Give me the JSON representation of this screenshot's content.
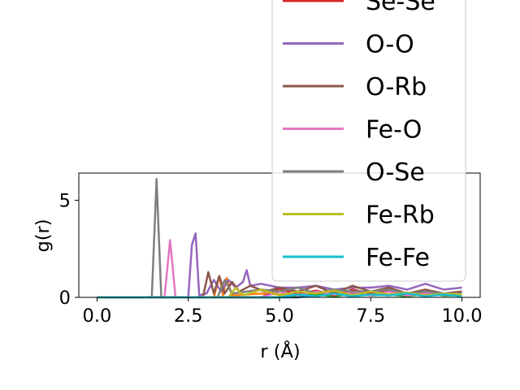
{
  "chart_data": {
    "type": "line",
    "xlabel": "r (Å)",
    "ylabel": "g(r)",
    "xlim": [
      -0.5,
      10.5
    ],
    "ylim": [
      0,
      6.4
    ],
    "xticks": [
      0.0,
      2.5,
      5.0,
      7.5,
      10.0
    ],
    "xtick_labels": [
      "0.0",
      "2.5",
      "5.0",
      "7.5",
      "10.0"
    ],
    "yticks": [
      0,
      5
    ],
    "ytick_labels": [
      "0",
      "5"
    ],
    "grid": false,
    "legend_position": "upper-right (extends above plot)",
    "series": [
      {
        "name": "Se-Se",
        "color": "#d62728",
        "x": [
          0,
          4.5,
          5.0,
          5.5,
          6.0,
          6.5,
          7.0,
          7.5,
          8.0,
          8.5,
          9.0,
          9.5,
          10
        ],
        "y": [
          0,
          0,
          0.45,
          0.15,
          0.35,
          0.1,
          0.4,
          0.2,
          0.3,
          0.1,
          0.25,
          0.15,
          0.1
        ]
      },
      {
        "name": "O-O",
        "color": "#9467bd",
        "x": [
          0,
          2.5,
          2.6,
          2.7,
          2.8,
          3.0,
          3.2,
          3.4,
          3.6,
          3.8,
          4.0,
          4.1,
          4.2,
          4.5,
          5.0,
          5.5,
          6.0,
          6.5,
          7.0,
          7.5,
          8.0,
          8.5,
          9.0,
          9.5,
          10
        ],
        "y": [
          0,
          0,
          2.7,
          3.3,
          0.1,
          0.2,
          0.9,
          0.3,
          0.9,
          0.5,
          0.8,
          1.4,
          0.6,
          0.7,
          0.5,
          0.5,
          0.6,
          0.4,
          0.5,
          0.5,
          0.6,
          0.4,
          0.7,
          0.4,
          0.5
        ]
      },
      {
        "name": "O-Rb",
        "color": "#8c564b",
        "x": [
          0,
          2.9,
          3.05,
          3.2,
          3.35,
          3.5,
          3.7,
          3.9,
          4.2,
          4.6,
          5.0,
          5.5,
          6.0,
          6.5,
          7.0,
          7.5,
          8.0,
          8.5,
          9.0,
          9.5,
          10
        ],
        "y": [
          0,
          0,
          1.3,
          0.2,
          1.1,
          0.2,
          0.8,
          0.3,
          0.6,
          0.3,
          0.5,
          0.3,
          0.6,
          0.2,
          0.6,
          0.3,
          0.5,
          0.2,
          0.4,
          0.2,
          0.3
        ]
      },
      {
        "name": "Fe-O",
        "color": "#e377c2",
        "x": [
          0,
          1.85,
          2.0,
          2.15,
          4.5,
          5.0,
          5.5,
          6.0,
          6.5,
          7.0,
          7.5,
          8.0,
          8.5,
          9.0,
          9.5,
          10
        ],
        "y": [
          0,
          0,
          2.95,
          0,
          0,
          0.3,
          0.1,
          0.3,
          0.15,
          0.25,
          0.1,
          0.3,
          0.1,
          0.2,
          0.15,
          0.1
        ]
      },
      {
        "name": "O-Se",
        "color": "#7f7f7f",
        "x": [
          0,
          1.5,
          1.63,
          1.76,
          3.3,
          3.5,
          3.7,
          4.5,
          5.0,
          5.5,
          6.0,
          6.5,
          7.0,
          7.5,
          8.0,
          8.5,
          9.0,
          9.5,
          10
        ],
        "y": [
          0,
          0,
          6.1,
          0,
          0,
          0.9,
          0.2,
          0.4,
          0.3,
          0.5,
          0.2,
          0.4,
          0.3,
          0.3,
          0.4,
          0.2,
          0.3,
          0.2,
          0.2
        ]
      },
      {
        "name": "Fe-Rb",
        "color": "#bcbd22",
        "x": [
          0,
          3.6,
          3.8,
          4.0,
          4.5,
          5.0,
          5.5,
          6.0,
          6.5,
          7.0,
          7.5,
          8.0,
          8.5,
          9.0,
          9.5,
          10
        ],
        "y": [
          0,
          0,
          0.5,
          0.1,
          0.4,
          0.1,
          0.3,
          0.2,
          0.35,
          0.1,
          0.3,
          0.15,
          0.25,
          0.1,
          0.2,
          0.15
        ]
      },
      {
        "name": "Fe-Fe",
        "color": "#17becf",
        "x": [
          0,
          5.0,
          5.5,
          6.0,
          6.5,
          7.0,
          7.5,
          8.0,
          8.5,
          9.0,
          9.5,
          10
        ],
        "y": [
          0,
          0,
          0.15,
          0.05,
          0.2,
          0.05,
          0.15,
          0.1,
          0.2,
          0.05,
          0.15,
          0.05
        ]
      }
    ],
    "hidden_series_colors": {
      "orange": "#ff7f0e",
      "blue": "#1f77b4",
      "green": "#2ca02c"
    },
    "hidden_series": [
      {
        "color": "#ff7f0e",
        "x": [
          0,
          3.2,
          3.35,
          3.45,
          3.55,
          3.7,
          4.5,
          5.0,
          5.5,
          6.0,
          6.5,
          7.0,
          7.5,
          8.0,
          8.5,
          9.0,
          9.5,
          10
        ],
        "y": [
          0,
          0,
          1.1,
          0.1,
          1.0,
          0.1,
          0.2,
          0.15,
          0.2,
          0.1,
          0.3,
          0.1,
          0.2,
          0.1,
          0.2,
          0.1,
          0.15,
          0.1
        ]
      },
      {
        "color": "#1f77b4",
        "x": [
          0,
          5.5,
          6.0,
          6.5,
          7.0,
          7.5,
          8.0,
          8.5,
          9.0,
          9.5,
          10
        ],
        "y": [
          0,
          0,
          0.1,
          0.2,
          0.05,
          0.15,
          0.35,
          0.1,
          0.2,
          0.1,
          0.15
        ]
      },
      {
        "color": "#2ca02c",
        "x": [
          0,
          5.0,
          5.5,
          6.0,
          6.5,
          7.0,
          7.5,
          8.0,
          8.5,
          9.0,
          9.5,
          10
        ],
        "y": [
          0,
          0,
          0.1,
          0.15,
          0.05,
          0.2,
          0.1,
          0.15,
          0.05,
          0.2,
          0.1,
          0.1
        ]
      }
    ]
  }
}
